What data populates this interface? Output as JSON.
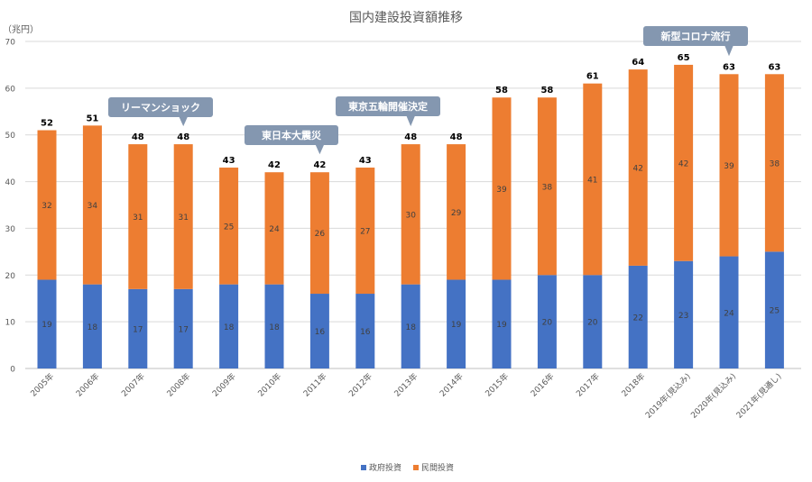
{
  "chart_data": {
    "type": "bar",
    "stacked": true,
    "title": "国内建設投資額推移",
    "unit_label": "（兆円）",
    "ylim": [
      0,
      70
    ],
    "yticks": [
      0,
      10,
      20,
      30,
      40,
      50,
      60,
      70
    ],
    "grid": true,
    "legend_position": "bottom",
    "categories": [
      "2005年",
      "2006年",
      "2007年",
      "2008年",
      "2009年",
      "2010年",
      "2011年",
      "2012年",
      "2013年",
      "2014年",
      "2015年",
      "2016年",
      "2017年",
      "2018年",
      "2019年(見込み)",
      "2020年(見込み)",
      "2021年(見通し)"
    ],
    "series": [
      {
        "name": "政府投資",
        "color": "#4472c4",
        "values": [
          19,
          18,
          17,
          17,
          18,
          18,
          16,
          16,
          18,
          19,
          19,
          20,
          20,
          22,
          23,
          24,
          25
        ]
      },
      {
        "name": "民間投資",
        "color": "#ed7d31",
        "values": [
          32,
          34,
          31,
          31,
          25,
          24,
          26,
          27,
          30,
          29,
          39,
          38,
          41,
          42,
          42,
          39,
          38
        ]
      }
    ],
    "totals": [
      52,
      51,
      48,
      48,
      43,
      42,
      42,
      43,
      48,
      48,
      58,
      58,
      61,
      64,
      65,
      63,
      63
    ],
    "annotations": [
      {
        "text": "リーマンショック",
        "target_index": 3
      },
      {
        "text": "東日本大震災",
        "target_index": 6
      },
      {
        "text": "東京五輪開催決定",
        "target_index": 8
      },
      {
        "text": "新型コロナ流行",
        "target_index": 15
      }
    ]
  }
}
